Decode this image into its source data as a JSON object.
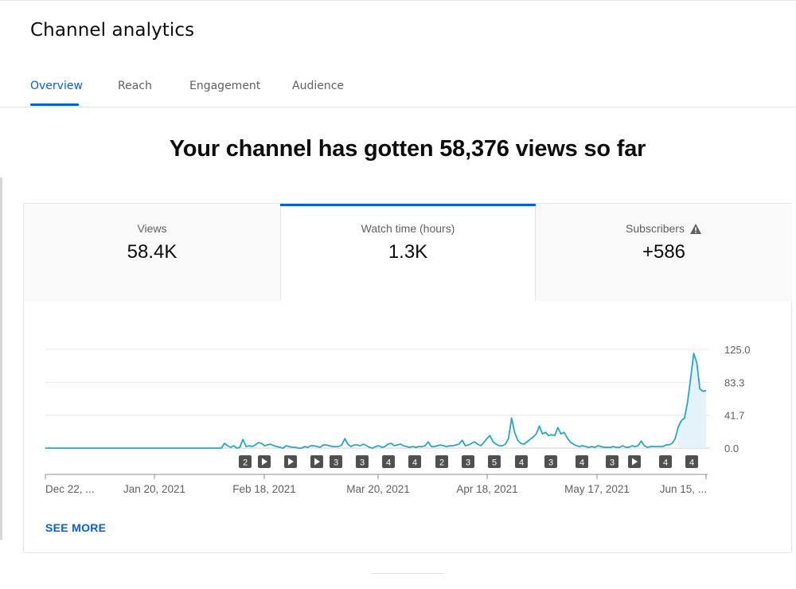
{
  "page": {
    "title": "Channel analytics",
    "tabs": [
      "Overview",
      "Reach",
      "Engagement",
      "Audience"
    ],
    "active_tab": "Overview",
    "headline": "Your channel has gotten 58,376 views so far"
  },
  "metrics": [
    {
      "label": "Views",
      "value": "58.4K"
    },
    {
      "label": "Watch time (hours)",
      "value": "1.3K",
      "selected": true
    },
    {
      "label": "Subscribers",
      "value": "+586",
      "icon": "warning-icon"
    }
  ],
  "colors": {
    "accent": "#065fd4",
    "line": "#29a6c6",
    "area": "#e3f3f9",
    "marker": "#505050"
  },
  "chart_data": {
    "type": "area",
    "series": [
      {
        "values": [
          0,
          0,
          0,
          0,
          0,
          0,
          0,
          0,
          0,
          0,
          0,
          0,
          0,
          0,
          0,
          0,
          0,
          0,
          0,
          0,
          0,
          0,
          0,
          0,
          0,
          0,
          0,
          0,
          0,
          0,
          0,
          0,
          0,
          0,
          0,
          0,
          0,
          0,
          0,
          0,
          0,
          0,
          0,
          0,
          0,
          0,
          0,
          0,
          0,
          0,
          0,
          0,
          0,
          0,
          0,
          0,
          0,
          0,
          6,
          3,
          1,
          3,
          0,
          1,
          11,
          2,
          3,
          2,
          4,
          7,
          6,
          3,
          4,
          5,
          3,
          2,
          1,
          0,
          3,
          2,
          1,
          1,
          0,
          0,
          2,
          1,
          3,
          3,
          2,
          1,
          4,
          4,
          3,
          2,
          2,
          2,
          4,
          12,
          5,
          2,
          4,
          4,
          3,
          5,
          3,
          1,
          0,
          2,
          3,
          1,
          2,
          5,
          6,
          3,
          4,
          5,
          3,
          2,
          1,
          2,
          1,
          2,
          2,
          3,
          8,
          2,
          2,
          3,
          4,
          3,
          2,
          3,
          3,
          4,
          5,
          10,
          3,
          4,
          6,
          8,
          5,
          3,
          7,
          12,
          16,
          8,
          5,
          3,
          3,
          5,
          12,
          38,
          20,
          10,
          6,
          5,
          8,
          11,
          14,
          18,
          28,
          18,
          20,
          16,
          17,
          16,
          26,
          18,
          20,
          13,
          8,
          5,
          3,
          2,
          3,
          2,
          1,
          2,
          1,
          3,
          2,
          1,
          1,
          1,
          2,
          1,
          1,
          3,
          1,
          1,
          3,
          2,
          3,
          9,
          3,
          1,
          2,
          2,
          2,
          2,
          2,
          4,
          4,
          6,
          12,
          27,
          35,
          38,
          58,
          88,
          120,
          108,
          75,
          72,
          73
        ]
      }
    ],
    "x_tick_labels": [
      "Dec 22, ...",
      "Jan 20, 2021",
      "Feb 18, 2021",
      "Mar 20, 2021",
      "Apr 18, 2021",
      "May 17, 2021",
      "Jun 15, ..."
    ],
    "y_tick_labels": [
      "125.0",
      "83.3",
      "41.7",
      "0.0"
    ],
    "ylim": [
      0,
      125
    ],
    "markers": [
      "2",
      "play",
      "play",
      "play",
      "3",
      "3",
      "4",
      "4",
      "2",
      "3",
      "5",
      "4",
      "3",
      "4",
      "3",
      "play",
      "4",
      "4"
    ]
  },
  "see_more": "SEE MORE"
}
